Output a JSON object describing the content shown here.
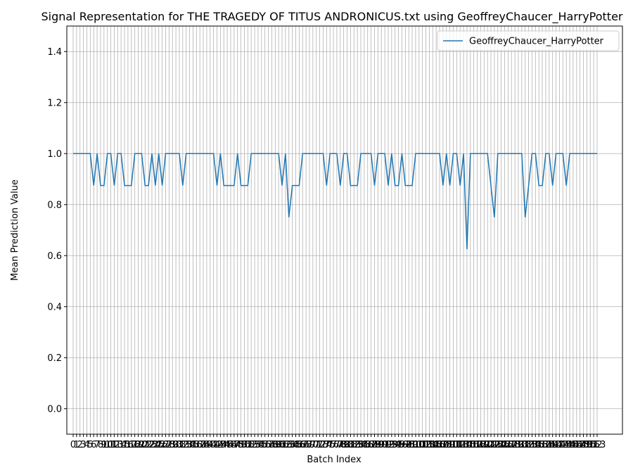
{
  "chart_data": {
    "type": "line",
    "title": "Signal Representation for THE TRAGEDY OF TITUS ANDRONICUS.txt using GeoffreyChaucer_HarryPotter",
    "x_label": "Batch Index",
    "y_label": "Mean Prediction Value",
    "x": [
      0,
      1,
      2,
      3,
      4,
      5,
      6,
      7,
      8,
      9,
      10,
      11,
      12,
      13,
      14,
      15,
      16,
      17,
      18,
      19,
      20,
      21,
      22,
      23,
      24,
      25,
      26,
      27,
      28,
      29,
      30,
      31,
      32,
      33,
      34,
      35,
      36,
      37,
      38,
      39,
      40,
      41,
      42,
      43,
      44,
      45,
      46,
      47,
      48,
      49,
      50,
      51,
      52,
      53,
      54,
      55,
      56,
      57,
      58,
      59,
      60,
      61,
      62,
      63,
      64,
      65,
      66,
      67,
      68,
      69,
      70,
      71,
      72,
      73,
      74,
      75,
      76,
      77,
      78,
      79,
      80,
      81,
      82,
      83,
      84,
      85,
      86,
      87,
      88,
      89,
      90,
      91,
      92,
      93,
      94,
      95,
      96,
      97,
      98,
      99,
      100,
      101,
      102,
      103,
      104,
      105,
      106,
      107,
      108,
      109,
      110,
      111,
      112,
      113,
      114,
      115,
      116,
      117,
      118,
      119,
      120,
      121,
      122,
      123,
      124,
      125,
      126,
      127,
      128,
      129,
      130,
      131,
      132,
      133,
      134,
      135,
      136,
      137,
      138,
      139,
      140,
      141,
      142,
      143,
      144,
      145,
      146,
      147,
      148,
      149,
      150,
      151,
      152,
      153
    ],
    "series": [
      {
        "name": "GeoffreyChaucer_HarryPotter",
        "color": "#1f77b4",
        "values": [
          1,
          1,
          1,
          1,
          1,
          1,
          0.875,
          1,
          0.875,
          0.875,
          1,
          1,
          0.875,
          1,
          1,
          0.875,
          0.875,
          0.875,
          1,
          1,
          1,
          0.875,
          0.875,
          1,
          0.875,
          1,
          0.875,
          1,
          1,
          1,
          1,
          1,
          0.875,
          1,
          1,
          1,
          1,
          1,
          1,
          1,
          1,
          1,
          0.875,
          1,
          0.875,
          0.875,
          0.875,
          0.875,
          1,
          0.875,
          0.875,
          0.875,
          1,
          1,
          1,
          1,
          1,
          1,
          1,
          1,
          1,
          0.875,
          1,
          0.75,
          0.875,
          0.875,
          0.875,
          1,
          1,
          1,
          1,
          1,
          1,
          1,
          0.875,
          1,
          1,
          1,
          0.875,
          1,
          1,
          0.875,
          0.875,
          0.875,
          1,
          1,
          1,
          1,
          0.875,
          1,
          1,
          1,
          0.875,
          1,
          0.875,
          0.875,
          1,
          0.875,
          0.875,
          0.875,
          1,
          1,
          1,
          1,
          1,
          1,
          1,
          1,
          0.875,
          1,
          0.875,
          1,
          1,
          0.875,
          1,
          0.625,
          1,
          1,
          1,
          1,
          1,
          1,
          0.875,
          0.75,
          1,
          1,
          1,
          1,
          1,
          1,
          1,
          1,
          0.75,
          0.875,
          1,
          1,
          0.875,
          0.875,
          1,
          1,
          0.875,
          1,
          1,
          1,
          0.875,
          1,
          1,
          1,
          1,
          1,
          1,
          1,
          1,
          1
        ]
      }
    ],
    "xlim": [
      -1.85,
      160.4
    ],
    "xticks": [
      0,
      1,
      2,
      3,
      4,
      5,
      6,
      7,
      8,
      9,
      10,
      11,
      12,
      13,
      14,
      15,
      16,
      17,
      18,
      19,
      20,
      21,
      22,
      23,
      24,
      25,
      26,
      27,
      28,
      29,
      30,
      31,
      32,
      33,
      34,
      35,
      36,
      37,
      38,
      39,
      40,
      41,
      42,
      43,
      44,
      45,
      46,
      47,
      48,
      49,
      50,
      51,
      52,
      53,
      54,
      55,
      56,
      57,
      58,
      59,
      60,
      61,
      62,
      63,
      64,
      65,
      66,
      67,
      68,
      69,
      70,
      71,
      72,
      73,
      74,
      75,
      76,
      77,
      78,
      79,
      80,
      81,
      82,
      83,
      84,
      85,
      86,
      87,
      88,
      89,
      90,
      91,
      92,
      93,
      94,
      95,
      96,
      97,
      98,
      99,
      100,
      101,
      102,
      103,
      104,
      105,
      106,
      107,
      108,
      109,
      110,
      111,
      112,
      113,
      114,
      115,
      116,
      117,
      118,
      119,
      120,
      121,
      122,
      123,
      124,
      125,
      126,
      127,
      128,
      129,
      130,
      131,
      132,
      133,
      134,
      135,
      136,
      137,
      138,
      139,
      140,
      141,
      142,
      143,
      144,
      145,
      146,
      147,
      148,
      149,
      150,
      151,
      152,
      153
    ],
    "ylim": [
      -0.1,
      1.5
    ],
    "yticks": [
      {
        "value": 0,
        "label": "0.0"
      },
      {
        "value": 0.2,
        "label": "0.2"
      },
      {
        "value": 0.4,
        "label": "0.4"
      },
      {
        "value": 0.6,
        "label": "0.6"
      },
      {
        "value": 0.8,
        "label": "0.8"
      },
      {
        "value": 1,
        "label": "1.0"
      },
      {
        "value": 1.2,
        "label": "1.2"
      },
      {
        "value": 1.4,
        "label": "1.4"
      }
    ],
    "grid": true,
    "legend": "upper right"
  }
}
